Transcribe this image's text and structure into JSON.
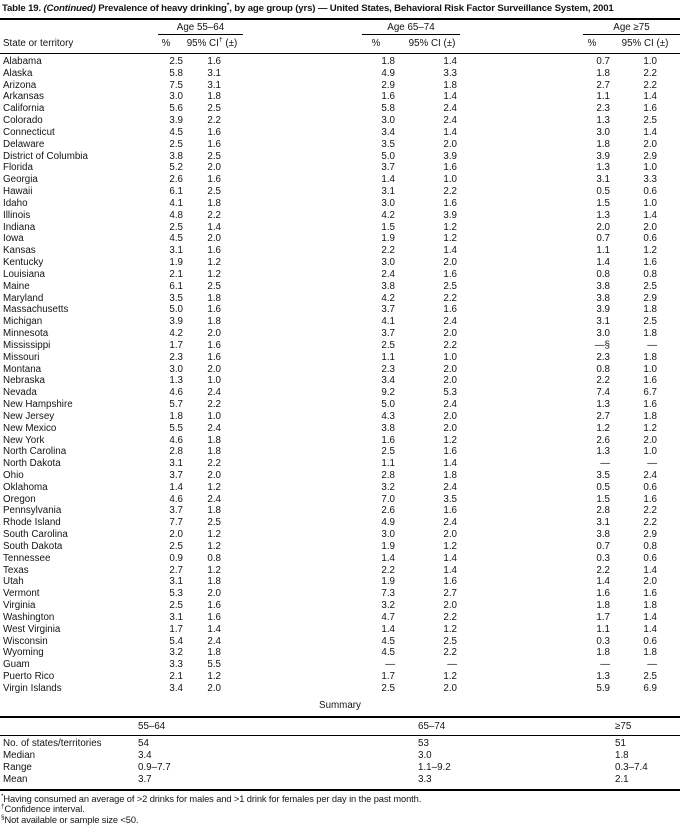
{
  "title": {
    "part1": "Table 19. ",
    "part2": "(Continued)",
    "part3": " Prevalence of heavy drinking",
    "star": "*",
    "part4": ", by age group (yrs) — United States, Behavioral Risk Factor Surveillance System, 2001"
  },
  "header": {
    "state_col": "State or territory",
    "age_groups": [
      {
        "label": "Age 55–64",
        "pct": "%",
        "ci_pre": "95% CI",
        "ci_sup": "†",
        "ci_post": " (±)"
      },
      {
        "label": "Age 65–74",
        "pct": "%",
        "ci_pre": "95% CI",
        "ci_sup": "",
        "ci_post": " (±)"
      },
      {
        "label": "Age ≥75",
        "pct": "%",
        "ci_pre": "95% CI",
        "ci_sup": "",
        "ci_post": " (±)"
      }
    ]
  },
  "rows": [
    {
      "state": "Alabama",
      "v": [
        "2.5",
        "1.6",
        "1.8",
        "1.4",
        "0.7",
        "1.0"
      ]
    },
    {
      "state": "Alaska",
      "v": [
        "5.8",
        "3.1",
        "4.9",
        "3.3",
        "1.8",
        "2.2"
      ]
    },
    {
      "state": "Arizona",
      "v": [
        "7.5",
        "3.1",
        "2.9",
        "1.8",
        "2.7",
        "2.2"
      ]
    },
    {
      "state": "Arkansas",
      "v": [
        "3.0",
        "1.8",
        "1.6",
        "1.4",
        "1.1",
        "1.4"
      ]
    },
    {
      "state": "California",
      "v": [
        "5.6",
        "2.5",
        "5.8",
        "2.4",
        "2.3",
        "1.6"
      ]
    },
    {
      "state": "Colorado",
      "v": [
        "3.9",
        "2.2",
        "3.0",
        "2.4",
        "1.3",
        "2.5"
      ]
    },
    {
      "state": "Connecticut",
      "v": [
        "4.5",
        "1.6",
        "3.4",
        "1.4",
        "3.0",
        "1.4"
      ]
    },
    {
      "state": "Delaware",
      "v": [
        "2.5",
        "1.6",
        "3.5",
        "2.0",
        "1.8",
        "2.0"
      ]
    },
    {
      "state": "District of Columbia",
      "v": [
        "3.8",
        "2.5",
        "5.0",
        "3.9",
        "3.9",
        "2.9"
      ]
    },
    {
      "state": "Florida",
      "v": [
        "5.2",
        "2.0",
        "3.7",
        "1.6",
        "1.3",
        "1.0"
      ]
    },
    {
      "state": "Georgia",
      "v": [
        "2.6",
        "1.6",
        "1.4",
        "1.0",
        "3.1",
        "3.3"
      ]
    },
    {
      "state": "Hawaii",
      "v": [
        "6.1",
        "2.5",
        "3.1",
        "2.2",
        "0.5",
        "0.6"
      ]
    },
    {
      "state": "Idaho",
      "v": [
        "4.1",
        "1.8",
        "3.0",
        "1.6",
        "1.5",
        "1.0"
      ]
    },
    {
      "state": "Illinois",
      "v": [
        "4.8",
        "2.2",
        "4.2",
        "3.9",
        "1.3",
        "1.4"
      ]
    },
    {
      "state": "Indiana",
      "v": [
        "2.5",
        "1.4",
        "1.5",
        "1.2",
        "2.0",
        "2.0"
      ]
    },
    {
      "state": "Iowa",
      "v": [
        "4.5",
        "2.0",
        "1.9",
        "1.2",
        "0.7",
        "0.6"
      ]
    },
    {
      "state": "Kansas",
      "v": [
        "3.1",
        "1.6",
        "2.2",
        "1.4",
        "1.1",
        "1.2"
      ]
    },
    {
      "state": "Kentucky",
      "v": [
        "1.9",
        "1.2",
        "3.0",
        "2.0",
        "1.4",
        "1.6"
      ]
    },
    {
      "state": "Louisiana",
      "v": [
        "2.1",
        "1.2",
        "2.4",
        "1.6",
        "0.8",
        "0.8"
      ]
    },
    {
      "state": "Maine",
      "v": [
        "6.1",
        "2.5",
        "3.8",
        "2.5",
        "3.8",
        "2.5"
      ]
    },
    {
      "state": "Maryland",
      "v": [
        "3.5",
        "1.8",
        "4.2",
        "2.2",
        "3.8",
        "2.9"
      ]
    },
    {
      "state": "Massachusetts",
      "v": [
        "5.0",
        "1.6",
        "3.7",
        "1.6",
        "3.9",
        "1.8"
      ]
    },
    {
      "state": "Michigan",
      "v": [
        "3.9",
        "1.8",
        "4.1",
        "2.4",
        "3.1",
        "2.5"
      ]
    },
    {
      "state": "Minnesota",
      "v": [
        "4.2",
        "2.0",
        "3.7",
        "2.0",
        "3.0",
        "1.8"
      ]
    },
    {
      "state": "Mississippi",
      "v": [
        "1.7",
        "1.6",
        "2.5",
        "2.2",
        "—§",
        "—"
      ]
    },
    {
      "state": "Missouri",
      "v": [
        "2.3",
        "1.6",
        "1.1",
        "1.0",
        "2.3",
        "1.8"
      ]
    },
    {
      "state": "Montana",
      "v": [
        "3.0",
        "2.0",
        "2.3",
        "2.0",
        "0.8",
        "1.0"
      ]
    },
    {
      "state": "Nebraska",
      "v": [
        "1.3",
        "1.0",
        "3.4",
        "2.0",
        "2.2",
        "1.6"
      ]
    },
    {
      "state": "Nevada",
      "v": [
        "4.6",
        "2.4",
        "9.2",
        "5.3",
        "7.4",
        "6.7"
      ]
    },
    {
      "state": "New Hampshire",
      "v": [
        "5.7",
        "2.2",
        "5.0",
        "2.4",
        "1.3",
        "1.6"
      ]
    },
    {
      "state": "New Jersey",
      "v": [
        "1.8",
        "1.0",
        "4.3",
        "2.0",
        "2.7",
        "1.8"
      ]
    },
    {
      "state": "New Mexico",
      "v": [
        "5.5",
        "2.4",
        "3.8",
        "2.0",
        "1.2",
        "1.2"
      ]
    },
    {
      "state": "New York",
      "v": [
        "4.6",
        "1.8",
        "1.6",
        "1.2",
        "2.6",
        "2.0"
      ]
    },
    {
      "state": "North Carolina",
      "v": [
        "2.8",
        "1.8",
        "2.5",
        "1.6",
        "1.3",
        "1.0"
      ]
    },
    {
      "state": "North Dakota",
      "v": [
        "3.1",
        "2.2",
        "1.1",
        "1.4",
        "—",
        "—"
      ]
    },
    {
      "state": "Ohio",
      "v": [
        "3.7",
        "2.0",
        "2.8",
        "1.8",
        "3.5",
        "2.4"
      ]
    },
    {
      "state": "Oklahoma",
      "v": [
        "1.4",
        "1.2",
        "3.2",
        "2.4",
        "0.5",
        "0.6"
      ]
    },
    {
      "state": "Oregon",
      "v": [
        "4.6",
        "2.4",
        "7.0",
        "3.5",
        "1.5",
        "1.6"
      ]
    },
    {
      "state": "Pennsylvania",
      "v": [
        "3.7",
        "1.8",
        "2.6",
        "1.6",
        "2.8",
        "2.2"
      ]
    },
    {
      "state": "Rhode Island",
      "v": [
        "7.7",
        "2.5",
        "4.9",
        "2.4",
        "3.1",
        "2.2"
      ]
    },
    {
      "state": "South Carolina",
      "v": [
        "2.0",
        "1.2",
        "3.0",
        "2.0",
        "3.8",
        "2.9"
      ]
    },
    {
      "state": "South Dakota",
      "v": [
        "2.5",
        "1.2",
        "1.9",
        "1.2",
        "0.7",
        "0.8"
      ]
    },
    {
      "state": "Tennessee",
      "v": [
        "0.9",
        "0.8",
        "1.4",
        "1.4",
        "0.3",
        "0.6"
      ]
    },
    {
      "state": "Texas",
      "v": [
        "2.7",
        "1.2",
        "2.2",
        "1.4",
        "2.2",
        "1.4"
      ]
    },
    {
      "state": "Utah",
      "v": [
        "3.1",
        "1.8",
        "1.9",
        "1.6",
        "1.4",
        "2.0"
      ]
    },
    {
      "state": "Vermont",
      "v": [
        "5.3",
        "2.0",
        "7.3",
        "2.7",
        "1.6",
        "1.6"
      ]
    },
    {
      "state": "Virginia",
      "v": [
        "2.5",
        "1.6",
        "3.2",
        "2.0",
        "1.8",
        "1.8"
      ]
    },
    {
      "state": "Washington",
      "v": [
        "3.1",
        "1.6",
        "4.7",
        "2.2",
        "1.7",
        "1.4"
      ]
    },
    {
      "state": "West Virginia",
      "v": [
        "1.7",
        "1.4",
        "1.4",
        "1.2",
        "1.1",
        "1.4"
      ]
    },
    {
      "state": "Wisconsin",
      "v": [
        "5.4",
        "2.4",
        "4.5",
        "2.5",
        "0.3",
        "0.6"
      ]
    },
    {
      "state": "Wyoming",
      "v": [
        "3.2",
        "1.8",
        "4.5",
        "2.2",
        "1.8",
        "1.8"
      ]
    },
    {
      "state": "Guam",
      "v": [
        "3.3",
        "5.5",
        "—",
        "—",
        "—",
        "—"
      ]
    },
    {
      "state": "Puerto Rico",
      "v": [
        "2.1",
        "1.2",
        "1.7",
        "1.2",
        "1.3",
        "2.5"
      ]
    },
    {
      "state": "Virgin Islands",
      "v": [
        "3.4",
        "2.0",
        "2.5",
        "2.0",
        "5.9",
        "6.9"
      ]
    }
  ],
  "summary": {
    "title": "Summary",
    "columns": [
      "55–64",
      "65–74",
      "≥75"
    ],
    "rows": [
      {
        "label": "No. of states/territories",
        "values": [
          "54",
          "53",
          "51"
        ]
      },
      {
        "label": "Median",
        "values": [
          "3.4",
          "3.0",
          "1.8"
        ]
      },
      {
        "label": "Range",
        "values": [
          "0.9–7.7",
          "1.1–9.2",
          "0.3–7.4"
        ]
      },
      {
        "label": "Mean",
        "values": [
          "3.7",
          "3.3",
          "2.1"
        ]
      }
    ]
  },
  "footnotes": [
    {
      "mark": "*",
      "text": "Having consumed an average of >2 drinks for males and >1 drink for females per day in the past month."
    },
    {
      "mark": "†",
      "text": "Confidence interval."
    },
    {
      "mark": "§",
      "text": "Not available or sample size <50."
    }
  ]
}
